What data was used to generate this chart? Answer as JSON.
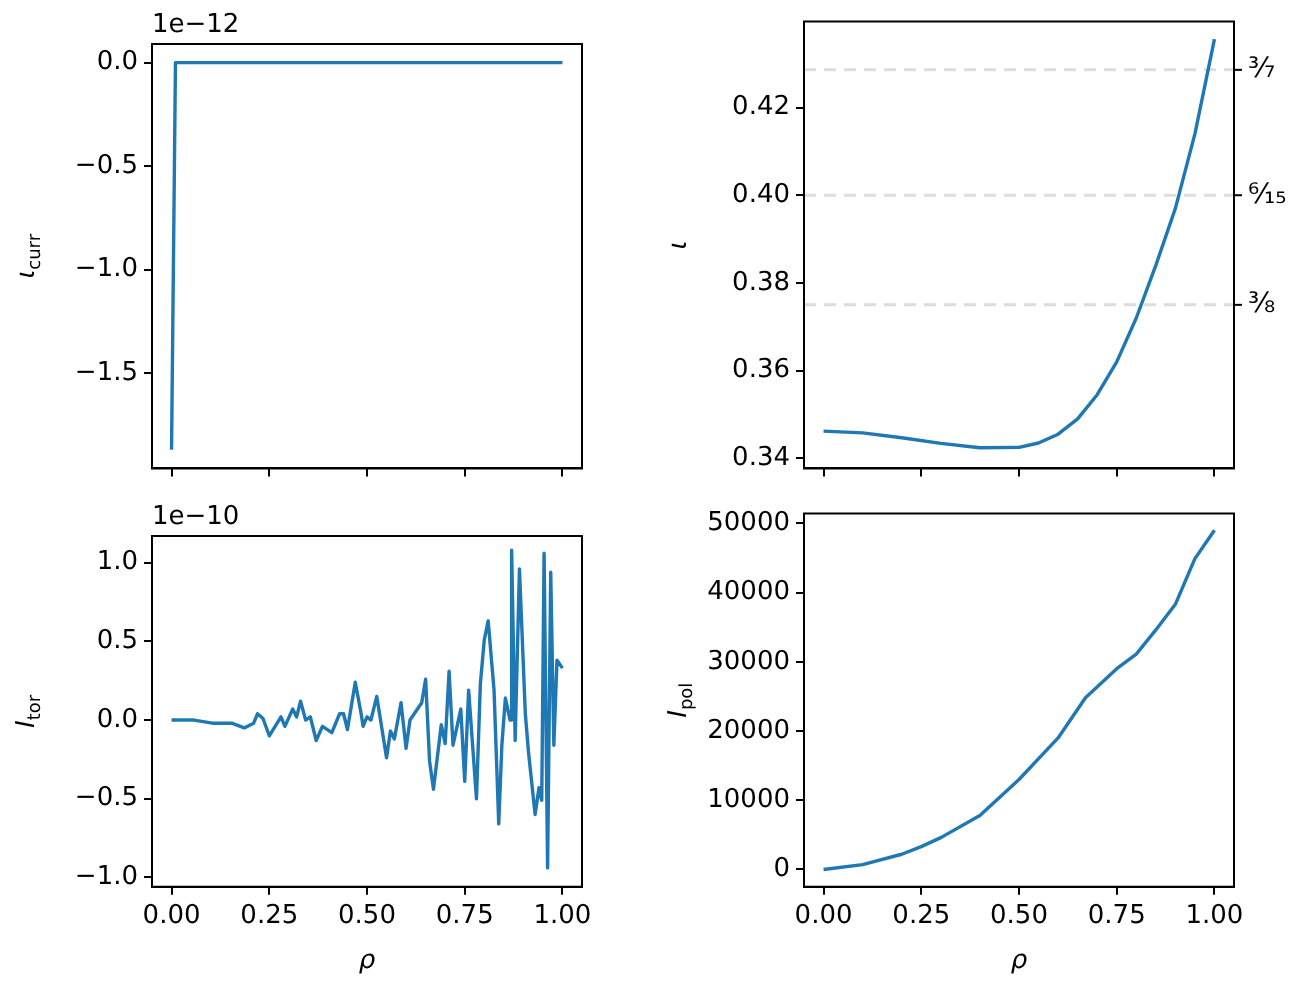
{
  "chart_data": [
    {
      "type": "line",
      "ylabel": "ι$_{curr}$",
      "annotations": [
        "1e−12"
      ],
      "color": "#1f77b4",
      "x": [
        0,
        0.01,
        1
      ],
      "values": [
        -1.87,
        0,
        0
      ],
      "xlim": [
        -0.05,
        1.05
      ],
      "xticks": [
        {
          "value": 0,
          "label": null
        },
        {
          "value": 0.25,
          "label": null
        },
        {
          "value": 0.5,
          "label": null
        },
        {
          "value": 0.75,
          "label": null
        },
        {
          "value": 1,
          "label": null
        }
      ],
      "ylim": [
        -1.96,
        0.09
      ],
      "yticks": [
        {
          "value": 0,
          "label": "0.0"
        },
        {
          "value": -0.5,
          "label": "−0.5"
        },
        {
          "value": -1,
          "label": "−1.0"
        },
        {
          "value": -1.5,
          "label": "−1.5"
        }
      ],
      "tick_labels": "y",
      "grid": false,
      "legend": false
    },
    {
      "type": "line",
      "ylabel": "ι",
      "color": "#1f77b4",
      "x": [
        0,
        0.1,
        0.2,
        0.3,
        0.4,
        0.5,
        0.55,
        0.6,
        0.65,
        0.7,
        0.75,
        0.8,
        0.85,
        0.9,
        0.95,
        1
      ],
      "values": [
        0.3462,
        0.3458,
        0.3447,
        0.3434,
        0.3424,
        0.3425,
        0.3435,
        0.3455,
        0.349,
        0.3545,
        0.362,
        0.372,
        0.384,
        0.397,
        0.414,
        0.4356
      ],
      "xlim": [
        -0.05,
        1.05
      ],
      "xticks": [
        {
          "value": 0,
          "label": null
        },
        {
          "value": 0.25,
          "label": null
        },
        {
          "value": 0.5,
          "label": null
        },
        {
          "value": 0.75,
          "label": null
        },
        {
          "value": 1,
          "label": null
        }
      ],
      "ylim": [
        0.3377,
        0.4396
      ],
      "yticks": [
        {
          "value": 0.34,
          "label": "0.34"
        },
        {
          "value": 0.36,
          "label": "0.36"
        },
        {
          "value": 0.38,
          "label": "0.38"
        },
        {
          "value": 0.4,
          "label": "0.40"
        },
        {
          "value": 0.42,
          "label": "0.42"
        }
      ],
      "ref_lines": [
        {
          "axis": "y",
          "value": 0.4286,
          "label": "³⁄₇",
          "color": "#dddddd",
          "line_style": "dashed"
        },
        {
          "axis": "y",
          "value": 0.4,
          "label": "⁶⁄₁₅",
          "color": "#dddddd",
          "line_style": "dashed"
        },
        {
          "axis": "y",
          "value": 0.375,
          "label": "³⁄₈",
          "color": "#dddddd",
          "line_style": "dashed"
        }
      ],
      "tick_labels": "y",
      "grid": false,
      "legend": false
    },
    {
      "type": "line",
      "xlabel": "ρ",
      "ylabel": "I$_{tor}$",
      "annotations": [
        "1e−10"
      ],
      "color": "#1f77b4",
      "x": [
        0,
        0.057,
        0.105,
        0.154,
        0.186,
        0.21,
        0.22,
        0.234,
        0.25,
        0.28,
        0.29,
        0.31,
        0.32,
        0.33,
        0.343,
        0.355,
        0.37,
        0.386,
        0.41,
        0.43,
        0.44,
        0.45,
        0.47,
        0.485,
        0.49,
        0.5,
        0.51,
        0.525,
        0.55,
        0.56,
        0.57,
        0.587,
        0.6,
        0.61,
        0.64,
        0.65,
        0.66,
        0.67,
        0.69,
        0.7,
        0.71,
        0.72,
        0.74,
        0.75,
        0.76,
        0.78,
        0.79,
        0.8,
        0.81,
        0.825,
        0.837,
        0.845,
        0.854,
        0.866,
        0.87,
        0.879,
        0.89,
        0.905,
        0.913,
        0.93,
        0.94,
        0.947,
        0.953,
        0.962,
        0.97,
        0.978,
        0.986,
        1
      ],
      "values": [
        0,
        0,
        -0.02,
        -0.02,
        -0.05,
        -0.02,
        0.04,
        0.01,
        -0.1,
        0.02,
        -0.04,
        0.07,
        0.02,
        0.12,
        0,
        0.02,
        -0.13,
        -0.04,
        -0.08,
        0.04,
        0.04,
        -0.06,
        0.24,
        0.04,
        -0.04,
        0.02,
        0,
        0.15,
        -0.24,
        -0.07,
        -0.12,
        0.11,
        -0.18,
        0,
        0.11,
        0.26,
        -0.26,
        -0.44,
        -0.03,
        -0.15,
        0.31,
        -0.16,
        0.07,
        -0.39,
        0.19,
        -0.5,
        0.23,
        0.51,
        0.63,
        0.19,
        -0.66,
        -0.16,
        0.14,
        0,
        1.08,
        -0.13,
        0.96,
        0.04,
        -0.2,
        -0.6,
        -0.43,
        -0.51,
        1.06,
        -0.94,
        0.94,
        -0.16,
        0.38,
        0.33
      ],
      "xlim": [
        -0.05,
        1.05
      ],
      "xticks": [
        {
          "value": 0,
          "label": "0.00"
        },
        {
          "value": 0.25,
          "label": "0.25"
        },
        {
          "value": 0.5,
          "label": "0.50"
        },
        {
          "value": 0.75,
          "label": "0.75"
        },
        {
          "value": 1,
          "label": "1.00"
        }
      ],
      "ylim": [
        -1.06,
        1.17
      ],
      "yticks": [
        {
          "value": -1,
          "label": "−1.0"
        },
        {
          "value": -0.5,
          "label": "−0.5"
        },
        {
          "value": 0,
          "label": "0.0"
        },
        {
          "value": 0.5,
          "label": "0.5"
        },
        {
          "value": 1,
          "label": "1.0"
        }
      ],
      "grid": false,
      "legend": false
    },
    {
      "type": "line",
      "xlabel": "ρ",
      "ylabel": "I$_{pol}$",
      "color": "#1f77b4",
      "x": [
        0,
        0.1,
        0.2,
        0.25,
        0.3,
        0.4,
        0.5,
        0.6,
        0.67,
        0.75,
        0.8,
        0.85,
        0.9,
        0.95,
        1
      ],
      "values": [
        0,
        700,
        2200,
        3300,
        4600,
        7800,
        13000,
        19000,
        24800,
        29000,
        31100,
        34600,
        38300,
        44900,
        49000
      ],
      "xlim": [
        -0.05,
        1.05
      ],
      "xticks": [
        {
          "value": 0,
          "label": "0.00"
        },
        {
          "value": 0.25,
          "label": "0.25"
        },
        {
          "value": 0.5,
          "label": "0.50"
        },
        {
          "value": 0.75,
          "label": "0.75"
        },
        {
          "value": 1,
          "label": "1.00"
        }
      ],
      "ylim": [
        -2500,
        51400
      ],
      "yticks": [
        0,
        10000,
        20000,
        30000,
        40000,
        50000
      ],
      "grid": false,
      "legend": false
    }
  ]
}
